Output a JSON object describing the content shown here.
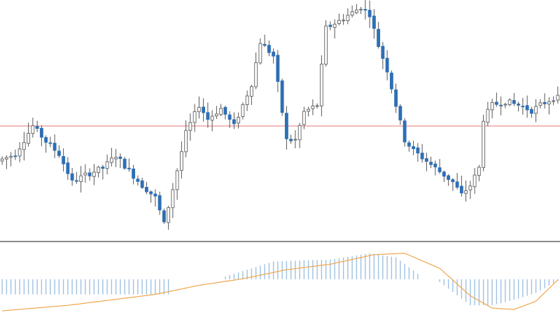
{
  "colors": {
    "background": "#ffffff",
    "bull_body": "#ffffff",
    "bull_outline": "#6e6e6e",
    "bear_body": "#2e6fb5",
    "bear_outline": "#2e6fb5",
    "wick": "#555555",
    "price_line": "#e57373",
    "separator": "#444444",
    "histogram": "#9fc2e0",
    "signal_line": "#f0a64b"
  },
  "chart_data": [
    {
      "type": "candlestick",
      "title": "",
      "xlabel": "",
      "ylabel": "",
      "ylim": [
        0,
        340
      ],
      "grid": false,
      "horizontal_line": {
        "value": 160
      },
      "anchors": [
        [
          0,
          110
        ],
        [
          4,
          120
        ],
        [
          8,
          160
        ],
        [
          11,
          138
        ],
        [
          14,
          120
        ],
        [
          17,
          80
        ],
        [
          20,
          90
        ],
        [
          24,
          100
        ],
        [
          27,
          118
        ],
        [
          30,
          96
        ],
        [
          33,
          75
        ],
        [
          36,
          58
        ],
        [
          38,
          20
        ],
        [
          40,
          70
        ],
        [
          43,
          150
        ],
        [
          46,
          190
        ],
        [
          48,
          170
        ],
        [
          51,
          185
        ],
        [
          54,
          160
        ],
        [
          58,
          220
        ],
        [
          60,
          280
        ],
        [
          63,
          260
        ],
        [
          66,
          140
        ],
        [
          68,
          140
        ],
        [
          70,
          180
        ],
        [
          73,
          190
        ],
        [
          75,
          300
        ],
        [
          78,
          310
        ],
        [
          80,
          318
        ],
        [
          83,
          330
        ],
        [
          85,
          320
        ],
        [
          87,
          275
        ],
        [
          89,
          240
        ],
        [
          91,
          190
        ],
        [
          93,
          140
        ],
        [
          95,
          125
        ],
        [
          98,
          110
        ],
        [
          101,
          95
        ],
        [
          104,
          80
        ],
        [
          106,
          62
        ],
        [
          108,
          75
        ],
        [
          110,
          100
        ],
        [
          111,
          170
        ],
        [
          113,
          190
        ],
        [
          116,
          195
        ],
        [
          119,
          190
        ],
        [
          122,
          182
        ],
        [
          124,
          190
        ],
        [
          127,
          200
        ]
      ],
      "candles": 128
    },
    {
      "type": "histogram",
      "title": "",
      "xlabel": "",
      "ylabel": "",
      "ylim": [
        -1.2,
        1.2
      ],
      "bar_anchors": [
        [
          0,
          -0.55
        ],
        [
          38,
          -0.55
        ],
        [
          39,
          0
        ],
        [
          50,
          0
        ],
        [
          51,
          0.1
        ],
        [
          62,
          0.65
        ],
        [
          75,
          0.72
        ],
        [
          84,
          0.95
        ],
        [
          90,
          0.8
        ],
        [
          95,
          0.2
        ],
        [
          96,
          0
        ],
        [
          99,
          0
        ],
        [
          100,
          -0.1
        ],
        [
          107,
          -0.95
        ],
        [
          112,
          -0.95
        ],
        [
          117,
          -0.75
        ],
        [
          122,
          -0.5
        ],
        [
          127,
          -0.05
        ]
      ],
      "signal_anchors": [
        [
          0,
          -1.15
        ],
        [
          15,
          -0.95
        ],
        [
          35,
          -0.55
        ],
        [
          45,
          -0.22
        ],
        [
          55,
          0.02
        ],
        [
          65,
          0.35
        ],
        [
          75,
          0.55
        ],
        [
          85,
          0.9
        ],
        [
          92,
          0.95
        ],
        [
          100,
          0.4
        ],
        [
          107,
          -0.6
        ],
        [
          112,
          -1.05
        ],
        [
          117,
          -1.1
        ],
        [
          122,
          -0.8
        ],
        [
          127,
          -0.02
        ]
      ]
    }
  ]
}
